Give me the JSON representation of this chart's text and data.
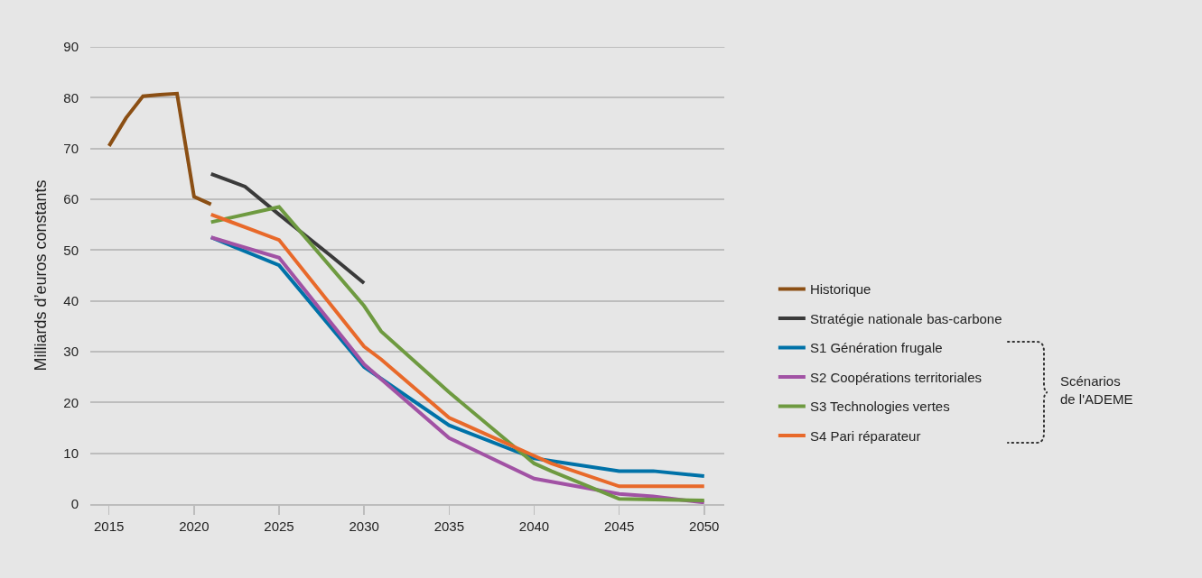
{
  "chart_data": {
    "type": "line",
    "ylabel": "Milliards d’euros constants",
    "xlim": [
      2013.9,
      2051.2
    ],
    "xticks": [
      2015,
      2020,
      2025,
      2030,
      2035,
      2040,
      2045,
      2050
    ],
    "ylim": [
      0,
      90
    ],
    "yticks": [
      0,
      10,
      20,
      30,
      40,
      50,
      60,
      70,
      80,
      90
    ],
    "grid": "y",
    "legend": "right",
    "marker": "none",
    "line_style": "solid",
    "annotations": [
      "Scénarios de l'ADEME"
    ],
    "series": [
      {
        "name": "Historique",
        "color": "#8b4f14",
        "x": [
          2015,
          2016,
          2017,
          2018,
          2019,
          2020,
          2021
        ],
        "values": [
          70.5,
          76,
          80.3,
          80.6,
          80.8,
          60.5,
          59
        ]
      },
      {
        "name": "Stratégie nationale bas-carbone",
        "color": "#3a3a3a",
        "x": [
          2021,
          2023,
          2025,
          2028,
          2030
        ],
        "values": [
          65,
          62.5,
          57,
          49,
          43.5
        ]
      },
      {
        "name": "S1 Génération frugale",
        "color": "#0072a8",
        "x": [
          2021,
          2025,
          2030,
          2035,
          2040,
          2045,
          2047,
          2050
        ],
        "values": [
          52.5,
          47,
          27,
          15.5,
          9,
          6.5,
          6.5,
          5.5
        ]
      },
      {
        "name": "S2 Coopérations territoriales",
        "color": "#a152a4",
        "x": [
          2021,
          2025,
          2030,
          2035,
          2040,
          2045,
          2047,
          2050
        ],
        "values": [
          52.5,
          48.5,
          27.5,
          13,
          5,
          2,
          1.5,
          0.3
        ]
      },
      {
        "name": "S3 Technologies vertes",
        "color": "#6e9a40",
        "x": [
          2021,
          2025,
          2030,
          2031,
          2035,
          2040,
          2041,
          2045,
          2050
        ],
        "values": [
          55.5,
          58.5,
          39,
          34,
          22,
          8,
          6.5,
          1,
          0.7
        ]
      },
      {
        "name": "S4 Pari réparateur",
        "color": "#e8692a",
        "x": [
          2021,
          2025,
          2030,
          2031,
          2035,
          2040,
          2041,
          2045,
          2050
        ],
        "values": [
          57,
          52,
          31,
          28.5,
          17,
          9.5,
          8,
          3.5,
          3.5
        ]
      }
    ]
  }
}
